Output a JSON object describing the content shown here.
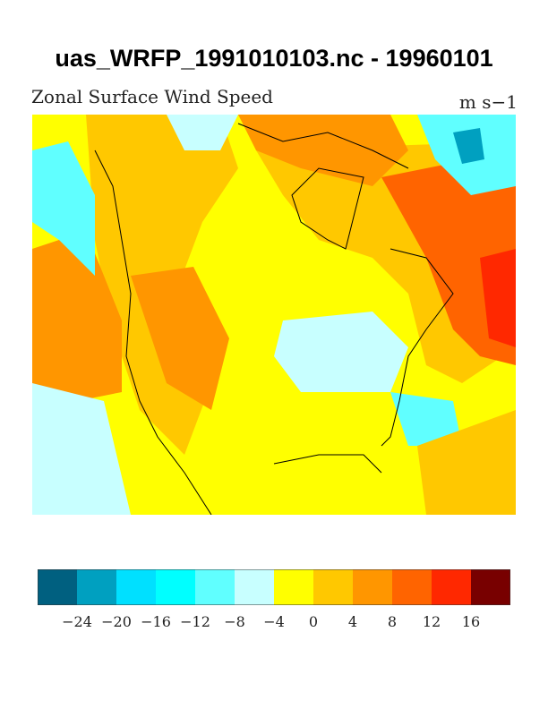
{
  "title": "uas_WRFP_1991010103.nc - 19960101",
  "subtitle": "Zonal Surface Wind Speed",
  "units": "m s−1",
  "colorbar": {
    "colors": [
      "#006080",
      "#00a0c0",
      "#00e0ff",
      "#00ffff",
      "#60ffff",
      "#c8ffff",
      "#ffff00",
      "#ffc800",
      "#ff9600",
      "#ff6400",
      "#ff2800",
      "#780000"
    ],
    "tick_labels": [
      "−24",
      "−20",
      "−16",
      "−12",
      "−8",
      "−4",
      "0",
      "4",
      "8",
      "12",
      "16"
    ]
  }
}
